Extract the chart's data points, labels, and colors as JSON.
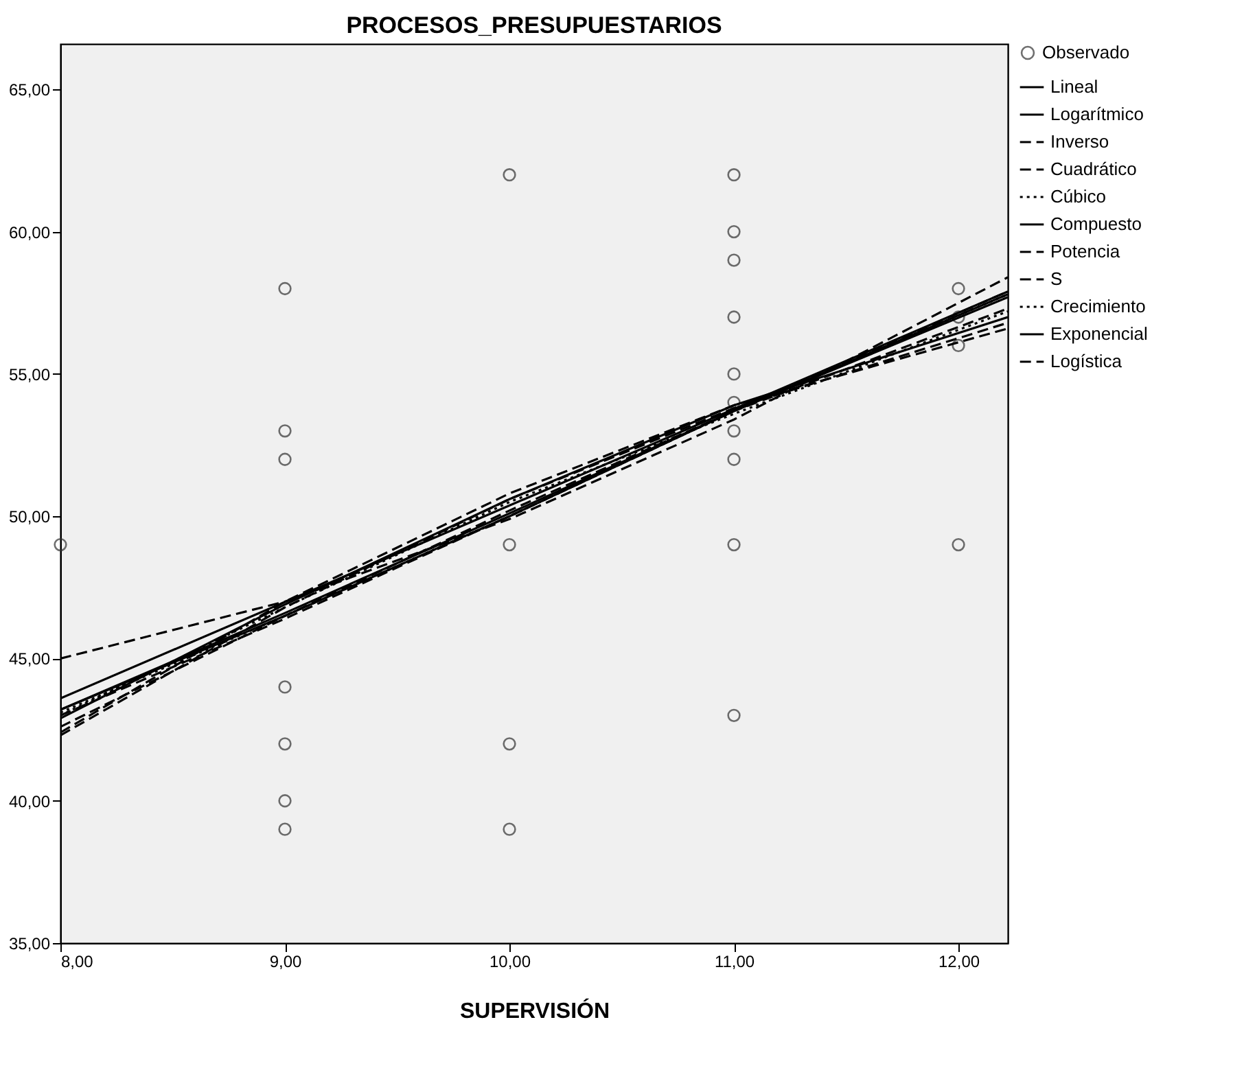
{
  "chart_data": {
    "type": "line",
    "title": "PROCESOS_PRESUPUESTARIOS",
    "xlabel": "SUPERVISIÓN",
    "xlim": [
      8,
      12.22
    ],
    "ylim": [
      35,
      66.6
    ],
    "xticks": [
      {
        "value": 8,
        "label": "8,00"
      },
      {
        "value": 9,
        "label": "9,00"
      },
      {
        "value": 10,
        "label": "10,00"
      },
      {
        "value": 11,
        "label": "11,00"
      },
      {
        "value": 12,
        "label": "12,00"
      }
    ],
    "yticks": [
      {
        "value": 35,
        "label": "35,00"
      },
      {
        "value": 40,
        "label": "40,00"
      },
      {
        "value": 45,
        "label": "45,00"
      },
      {
        "value": 50,
        "label": "50,00"
      },
      {
        "value": 55,
        "label": "55,00"
      },
      {
        "value": 60,
        "label": "60,00"
      },
      {
        "value": 65,
        "label": "65,00"
      }
    ],
    "grid": false,
    "legend": "top right",
    "series": [
      {
        "name": "Observado",
        "type": "scatter",
        "marker": "circle",
        "color": "#333333",
        "x": [
          8,
          9,
          9,
          9,
          9,
          9,
          9,
          9,
          10,
          10,
          10,
          10,
          11,
          11,
          11,
          11,
          11,
          11,
          11,
          11,
          11,
          11,
          12,
          12,
          12,
          12
        ],
        "values": [
          49,
          58,
          53,
          52,
          44,
          42,
          40,
          39,
          62,
          49,
          42,
          39,
          62,
          60,
          59,
          57,
          55,
          54,
          53,
          52,
          49,
          43,
          58,
          57,
          56,
          49
        ]
      },
      {
        "name": "Lineal",
        "color": "#000000",
        "line_style": "solid",
        "x": [
          8,
          12.22
        ],
        "values": [
          43.6,
          57.9
        ]
      },
      {
        "name": "Logarítmico",
        "color": "#000000",
        "line_style": "solid",
        "x": [
          8,
          9,
          10,
          11,
          12.22
        ],
        "values": [
          42.9,
          46.9,
          50.6,
          53.9,
          57.0
        ]
      },
      {
        "name": "Inverso",
        "color": "#000000",
        "line_style": "dashed",
        "x": [
          8,
          9,
          10,
          11,
          12.22
        ],
        "values": [
          42.4,
          47.0,
          50.8,
          53.9,
          56.6
        ]
      },
      {
        "name": "Cuadrático",
        "color": "#000000",
        "line_style": "dashed",
        "x": [
          8,
          9,
          10,
          11,
          12.22
        ],
        "values": [
          45.0,
          47.0,
          49.9,
          53.4,
          58.4
        ]
      },
      {
        "name": "Cúbico",
        "color": "#000000",
        "line_style": "dotted",
        "x": [
          8,
          9,
          10,
          11,
          12.22
        ],
        "values": [
          43.0,
          46.8,
          50.5,
          53.6,
          57.2
        ]
      },
      {
        "name": "Compuesto",
        "color": "#000000",
        "line_style": "solid",
        "x": [
          8,
          9,
          10,
          11,
          12.22
        ],
        "values": [
          43.2,
          46.5,
          50.0,
          53.7,
          57.8
        ]
      },
      {
        "name": "Potencia",
        "color": "#000000",
        "line_style": "dashed",
        "x": [
          8,
          9,
          10,
          11,
          12.22
        ],
        "values": [
          42.6,
          46.5,
          50.2,
          53.7,
          57.3
        ]
      },
      {
        "name": "S",
        "color": "#000000",
        "line_style": "dashed",
        "x": [
          8,
          9,
          10,
          11,
          12.22
        ],
        "values": [
          42.3,
          46.8,
          50.6,
          53.8,
          56.8
        ]
      },
      {
        "name": "Crecimiento",
        "color": "#000000",
        "line_style": "dotted",
        "x": [
          8,
          9,
          10,
          11,
          12.22
        ],
        "values": [
          43.1,
          46.5,
          50.0,
          53.7,
          57.8
        ]
      },
      {
        "name": "Exponencial",
        "color": "#000000",
        "line_style": "solid",
        "x": [
          8,
          9,
          10,
          11,
          12.22
        ],
        "values": [
          43.2,
          46.6,
          50.1,
          53.7,
          57.7
        ]
      },
      {
        "name": "Logística",
        "color": "#000000",
        "line_style": "dashed",
        "x": [
          8,
          9,
          10,
          11,
          12.22
        ],
        "values": [
          43.0,
          46.4,
          50.0,
          53.7,
          57.9
        ]
      }
    ]
  }
}
